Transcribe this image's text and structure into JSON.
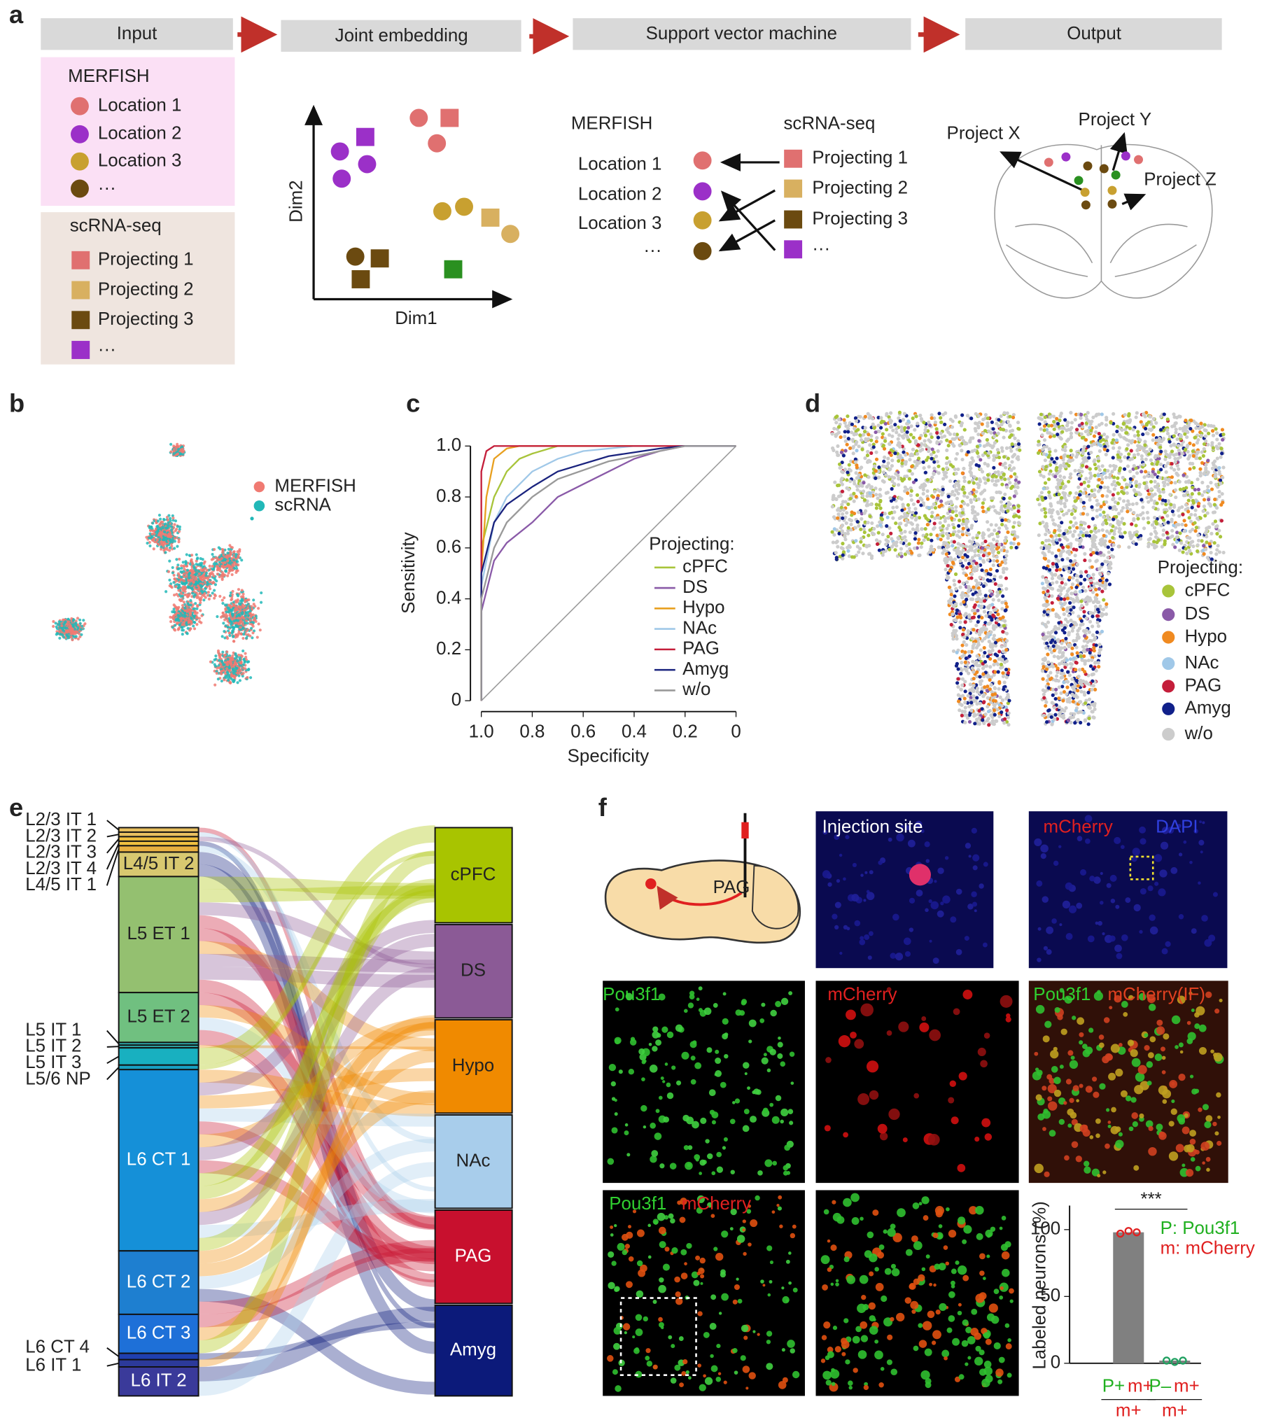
{
  "panel_labels": [
    "a",
    "b",
    "c",
    "d",
    "e",
    "f"
  ],
  "panel_a": {
    "steps": [
      "Input",
      "Joint embedding",
      "Support vector machine",
      "Output"
    ],
    "merfish": {
      "title": "MERFISH",
      "items": [
        "Location 1",
        "Location 2",
        "Location 3",
        "···"
      ]
    },
    "scrna": {
      "title": "scRNA-seq",
      "items": [
        "Projecting 1",
        "Projecting 2",
        "Projecting 3",
        "···"
      ]
    },
    "embedding": {
      "xlabel": "Dim1",
      "ylabel": "Dim2"
    },
    "svm": {
      "left_title": "MERFISH",
      "right_title": "scRNA-seq",
      "left": [
        "Location 1",
        "Location 2",
        "Location 3",
        "···"
      ],
      "right": [
        "Projecting 1",
        "Projecting 2",
        "Projecting 3",
        "···"
      ]
    },
    "output": {
      "labels": [
        "Project X",
        "Project Y",
        "Project Z"
      ]
    }
  },
  "panel_b": {
    "legend": [
      "MERFISH",
      "scRNA"
    ],
    "colors": [
      "#f07a72",
      "#22b8b8"
    ]
  },
  "chart_data": [
    {
      "type": "line",
      "xlabel": "Specificity",
      "ylabel": "Sensitivity",
      "legend_title": "Projecting:",
      "xlim": [
        1,
        0
      ],
      "ylim": [
        0,
        1
      ],
      "xticks": [
        {
          "value": 1,
          "label": "1.0"
        },
        0.8,
        0.6,
        0.4,
        0.2,
        0
      ],
      "yticks": [
        0,
        0.2,
        0.4,
        0.6,
        0.8,
        {
          "value": 1,
          "label": "1.0"
        }
      ],
      "series": [
        {
          "name": "cPFC",
          "color": "#a8c43a",
          "x": [
            1,
            1,
            0.95,
            0.9,
            0.85,
            0.8,
            0.7,
            0
          ],
          "values": [
            0,
            0.6,
            0.8,
            0.9,
            0.95,
            0.97,
            1,
            1
          ]
        },
        {
          "name": "DS",
          "color": "#8a5aa8",
          "x": [
            1,
            1,
            0.95,
            0.9,
            0.8,
            0.7,
            0.6,
            0.5,
            0.4,
            0.3,
            0.2,
            0
          ],
          "values": [
            0,
            0.35,
            0.55,
            0.62,
            0.7,
            0.8,
            0.85,
            0.9,
            0.95,
            0.98,
            1,
            1
          ]
        },
        {
          "name": "Hypo",
          "color": "#e8a020",
          "x": [
            1,
            1,
            0.98,
            0.95,
            0.9,
            0.85,
            0
          ],
          "values": [
            0,
            0.5,
            0.8,
            0.95,
            0.99,
            1,
            1
          ]
        },
        {
          "name": "NAc",
          "color": "#a0c8e8",
          "x": [
            1,
            1,
            0.95,
            0.9,
            0.8,
            0.7,
            0.6,
            0.4,
            0
          ],
          "values": [
            0,
            0.45,
            0.7,
            0.8,
            0.9,
            0.95,
            0.98,
            1,
            1
          ]
        },
        {
          "name": "PAG",
          "color": "#c41e3a",
          "x": [
            1,
            1,
            0.98,
            0.95,
            0
          ],
          "values": [
            0,
            0.9,
            0.98,
            1,
            1
          ]
        },
        {
          "name": "Amyg",
          "color": "#1a237e",
          "x": [
            1,
            1,
            0.95,
            0.9,
            0.8,
            0.7,
            0.5,
            0.3,
            0.2,
            0
          ],
          "values": [
            0,
            0.5,
            0.7,
            0.77,
            0.84,
            0.9,
            0.96,
            0.99,
            1,
            1
          ]
        },
        {
          "name": "w/o",
          "color": "#999999",
          "x": [
            1,
            1,
            0.95,
            0.9,
            0.8,
            0.7,
            0.5,
            0.3,
            0.2,
            0
          ],
          "values": [
            0,
            0.4,
            0.6,
            0.7,
            0.8,
            0.87,
            0.94,
            0.98,
            1,
            1
          ]
        }
      ]
    },
    {
      "type": "bar",
      "ylabel": "Labeled neurons (%)",
      "annotation": "***",
      "categories": [
        "P+",
        "P–"
      ],
      "category_suffix": [
        "m+",
        "m+"
      ],
      "denominator": [
        "m+",
        "m+"
      ],
      "values": [
        98,
        2
      ],
      "color": "#808080",
      "points": [
        [
          97,
          99,
          98
        ],
        [
          2,
          1,
          2
        ]
      ],
      "point_colors": [
        "#e02020",
        "#20a060"
      ],
      "legend": [
        "P: Pou3f1",
        "m: mCherry"
      ],
      "legend_colors": [
        "#20b020",
        "#e02020"
      ],
      "ylim": [
        0,
        118
      ],
      "yticks": [
        0,
        50,
        100
      ]
    }
  ],
  "panel_d": {
    "legend_title": "Projecting:",
    "legend": [
      "cPFC",
      "DS",
      "Hypo",
      "NAc",
      "PAG",
      "Amyg",
      "w/o"
    ],
    "colors": [
      "#a8c43a",
      "#8a5aa8",
      "#f08a20",
      "#a0c8e8",
      "#c41e3a",
      "#10208a",
      "#cccccc"
    ]
  },
  "panel_e": {
    "left_nodes": [
      "L2/3 IT 1",
      "L2/3 IT 2",
      "L2/3 IT 3",
      "L2/3 IT 4",
      "L4/5 IT 1",
      "L4/5 IT 2",
      "L5 ET 1",
      "L5 ET 2",
      "L5 IT 1",
      "L5 IT 2",
      "L5 IT 3",
      "L5/6 NP",
      "L6 CT 1",
      "L6 CT 2",
      "L6 CT 3",
      "L6 CT 4",
      "L6 IT 1",
      "L6 IT 2"
    ],
    "right_nodes": [
      "cPFC",
      "DS",
      "Hypo",
      "NAc",
      "PAG",
      "Amyg"
    ],
    "right_colors": [
      "#a8c400",
      "#8b5a96",
      "#f08a00",
      "#a8cdeb",
      "#c8102e",
      "#0c1a7a"
    ]
  },
  "panel_f": {
    "schematic_label": "PAG",
    "injection": "Injection site",
    "row1": [
      "mCherry",
      "DAPI"
    ],
    "row2": [
      "Pou3f1",
      "mCherry",
      "Pou3f1",
      "mCherry(IF)"
    ],
    "row3": [
      "Pou3f1",
      "mCherry"
    ]
  }
}
